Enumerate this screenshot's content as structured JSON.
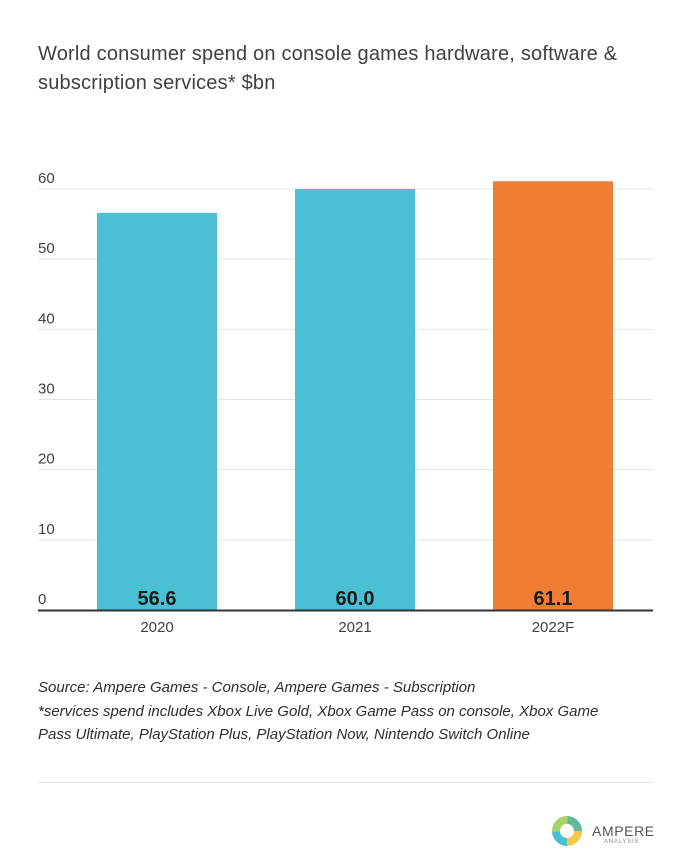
{
  "title": {
    "line1": "World consumer spend on console games hardware, software &",
    "line2": "subscription services* $bn"
  },
  "chart_data": {
    "type": "bar",
    "title": "World consumer spend on console games hardware, software & subscription services* $bn",
    "categories": [
      "2020",
      "2021",
      "2022F"
    ],
    "values": [
      56.6,
      60.0,
      61.1
    ],
    "value_labels": [
      "56.6",
      "60.0",
      "61.1"
    ],
    "colors": [
      "#4bbfd3",
      "#4bbfd3",
      "#f07d33"
    ],
    "yticks": [
      0,
      10,
      20,
      30,
      40,
      50,
      60
    ],
    "ylim": [
      0,
      60
    ],
    "xlabel": "",
    "ylabel": "",
    "grid": true
  },
  "notes": {
    "source": "Source: Ampere Games - Console, Ampere Games - Subscription",
    "footnote_line1": "*services spend includes Xbox Live Gold, Xbox Game Pass on console, Xbox Game",
    "footnote_line2": "Pass Ultimate, PlayStation Plus, PlayStation Now, Nintendo Switch Online"
  },
  "logo": {
    "name": "AMPERE",
    "subtitle": "ANALYSIS"
  }
}
